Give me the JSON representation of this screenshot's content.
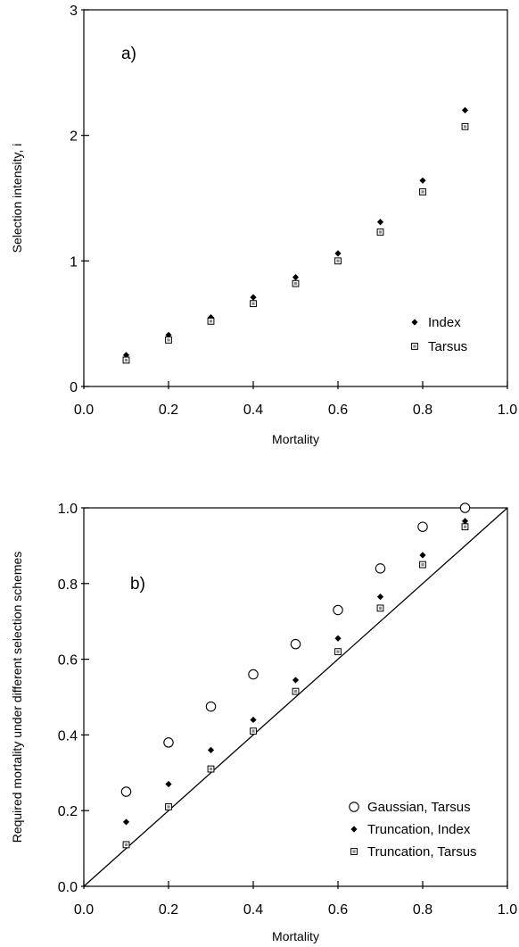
{
  "chart_data": [
    {
      "type": "scatter",
      "panel_label": "a)",
      "xlabel": "Mortality",
      "ylabel": "Selection intensity, i",
      "xlim": [
        0.0,
        1.0
      ],
      "ylim": [
        0,
        3
      ],
      "x_ticks": [
        "0.0",
        "0.2",
        "0.4",
        "0.6",
        "0.8",
        "1.0"
      ],
      "y_ticks": [
        "0",
        "1",
        "2",
        "3"
      ],
      "legend_position": "bottom-right",
      "series": [
        {
          "name": "Index",
          "marker": "diamond-filled",
          "x": [
            0.1,
            0.2,
            0.3,
            0.4,
            0.5,
            0.6,
            0.7,
            0.8,
            0.9
          ],
          "y": [
            0.25,
            0.41,
            0.55,
            0.71,
            0.87,
            1.06,
            1.31,
            1.64,
            2.2
          ]
        },
        {
          "name": "Tarsus",
          "marker": "square-dotted",
          "x": [
            0.1,
            0.2,
            0.3,
            0.4,
            0.5,
            0.6,
            0.7,
            0.8,
            0.9
          ],
          "y": [
            0.21,
            0.37,
            0.52,
            0.66,
            0.82,
            1.0,
            1.23,
            1.55,
            2.07
          ]
        }
      ]
    },
    {
      "type": "scatter",
      "panel_label": "b)",
      "xlabel": "Mortality",
      "ylabel": "Required mortality under different selection schemes",
      "xlim": [
        0.0,
        1.0
      ],
      "ylim": [
        0.0,
        1.0
      ],
      "x_ticks": [
        "0.0",
        "0.2",
        "0.4",
        "0.6",
        "0.8",
        "1.0"
      ],
      "y_ticks": [
        "0.0",
        "0.2",
        "0.4",
        "0.6",
        "0.8",
        "1.0"
      ],
      "legend_position": "bottom-right",
      "reference_line": {
        "type": "identity",
        "from": [
          0,
          0
        ],
        "to": [
          1,
          1
        ]
      },
      "series": [
        {
          "name": "Gaussian, Tarsus",
          "marker": "circle-open",
          "x": [
            0.1,
            0.2,
            0.3,
            0.4,
            0.5,
            0.6,
            0.7,
            0.8,
            0.9
          ],
          "y": [
            0.25,
            0.38,
            0.475,
            0.56,
            0.64,
            0.73,
            0.84,
            0.95,
            1.0
          ]
        },
        {
          "name": "Truncation, Index",
          "marker": "diamond-filled",
          "x": [
            0.1,
            0.2,
            0.3,
            0.4,
            0.5,
            0.6,
            0.7,
            0.8,
            0.9
          ],
          "y": [
            0.17,
            0.27,
            0.36,
            0.44,
            0.545,
            0.655,
            0.765,
            0.875,
            0.965
          ]
        },
        {
          "name": "Truncation, Tarsus",
          "marker": "square-dotted",
          "x": [
            0.1,
            0.2,
            0.3,
            0.4,
            0.5,
            0.6,
            0.7,
            0.8,
            0.9
          ],
          "y": [
            0.11,
            0.21,
            0.31,
            0.41,
            0.515,
            0.62,
            0.735,
            0.85,
            0.95
          ]
        }
      ]
    }
  ]
}
